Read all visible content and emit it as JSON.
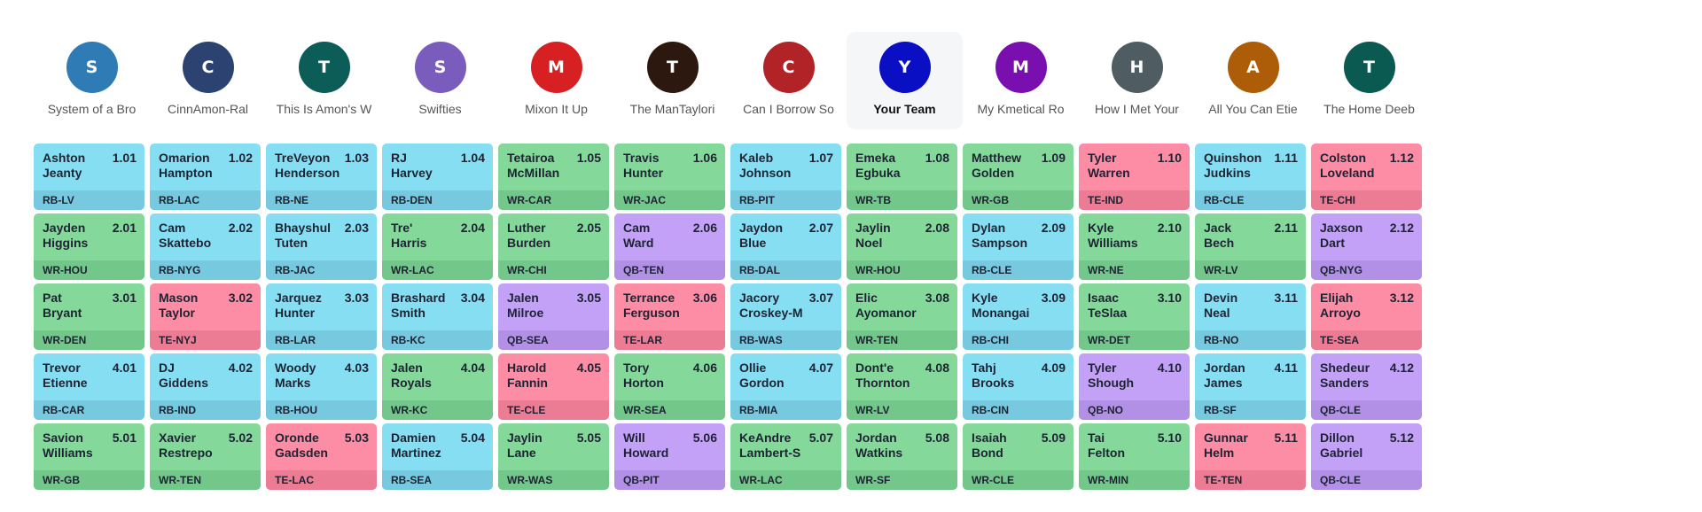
{
  "teams": [
    {
      "initial": "S",
      "name": "System of a Bro",
      "color": "#2f7bb5",
      "mine": false
    },
    {
      "initial": "C",
      "name": "CinnAmon-Ral",
      "color": "#2c4270",
      "mine": false
    },
    {
      "initial": "T",
      "name": "This Is Amon's W",
      "color": "#0c5c58",
      "mine": false
    },
    {
      "initial": "S",
      "name": "Swifties",
      "color": "#7a5cbc",
      "mine": false
    },
    {
      "initial": "M",
      "name": "Mixon It Up",
      "color": "#d62022",
      "mine": false
    },
    {
      "initial": "T",
      "name": "The ManTaylori",
      "color": "#2d1810",
      "mine": false
    },
    {
      "initial": "C",
      "name": "Can I Borrow So",
      "color": "#b22328",
      "mine": false
    },
    {
      "initial": "Y",
      "name": "Your Team",
      "color": "#0a0fc4",
      "mine": true
    },
    {
      "initial": "M",
      "name": "My Kmetical Ro",
      "color": "#7a0fb0",
      "mine": false
    },
    {
      "initial": "H",
      "name": "How I Met Your",
      "color": "#4f5d63",
      "mine": false
    },
    {
      "initial": "A",
      "name": "All You Can Etie",
      "color": "#ad5c07",
      "mine": false
    },
    {
      "initial": "T",
      "name": "The Home Deeb",
      "color": "#0b5a52",
      "mine": false
    }
  ],
  "rounds": [
    [
      {
        "name": "Ashton\nJeanty",
        "num": "1.01",
        "pos": "RB",
        "team": "LV"
      },
      {
        "name": "Omarion\nHampton",
        "num": "1.02",
        "pos": "RB",
        "team": "LAC"
      },
      {
        "name": "TreVeyon\nHenderson",
        "num": "1.03",
        "pos": "RB",
        "team": "NE"
      },
      {
        "name": "RJ\nHarvey",
        "num": "1.04",
        "pos": "RB",
        "team": "DEN"
      },
      {
        "name": "Tetairoa\nMcMillan",
        "num": "1.05",
        "pos": "WR",
        "team": "CAR"
      },
      {
        "name": "Travis\nHunter",
        "num": "1.06",
        "pos": "WR",
        "team": "JAC"
      },
      {
        "name": "Kaleb\nJohnson",
        "num": "1.07",
        "pos": "RB",
        "team": "PIT"
      },
      {
        "name": "Emeka\nEgbuka",
        "num": "1.08",
        "pos": "WR",
        "team": "TB"
      },
      {
        "name": "Matthew\nGolden",
        "num": "1.09",
        "pos": "WR",
        "team": "GB"
      },
      {
        "name": "Tyler\nWarren",
        "num": "1.10",
        "pos": "TE",
        "team": "IND"
      },
      {
        "name": "Quinshon\nJudkins",
        "num": "1.11",
        "pos": "RB",
        "team": "CLE"
      },
      {
        "name": "Colston\nLoveland",
        "num": "1.12",
        "pos": "TE",
        "team": "CHI"
      }
    ],
    [
      {
        "name": "Jayden\nHiggins",
        "num": "2.01",
        "pos": "WR",
        "team": "HOU"
      },
      {
        "name": "Cam\nSkattebo",
        "num": "2.02",
        "pos": "RB",
        "team": "NYG"
      },
      {
        "name": "Bhayshul\nTuten",
        "num": "2.03",
        "pos": "RB",
        "team": "JAC"
      },
      {
        "name": "Tre'\nHarris",
        "num": "2.04",
        "pos": "WR",
        "team": "LAC"
      },
      {
        "name": "Luther\nBurden",
        "num": "2.05",
        "pos": "WR",
        "team": "CHI"
      },
      {
        "name": "Cam\nWard",
        "num": "2.06",
        "pos": "QB",
        "team": "TEN"
      },
      {
        "name": "Jaydon\nBlue",
        "num": "2.07",
        "pos": "RB",
        "team": "DAL"
      },
      {
        "name": "Jaylin\nNoel",
        "num": "2.08",
        "pos": "WR",
        "team": "HOU"
      },
      {
        "name": "Dylan\nSampson",
        "num": "2.09",
        "pos": "RB",
        "team": "CLE"
      },
      {
        "name": "Kyle\nWilliams",
        "num": "2.10",
        "pos": "WR",
        "team": "NE"
      },
      {
        "name": "Jack\nBech",
        "num": "2.11",
        "pos": "WR",
        "team": "LV"
      },
      {
        "name": "Jaxson\nDart",
        "num": "2.12",
        "pos": "QB",
        "team": "NYG"
      }
    ],
    [
      {
        "name": "Pat\nBryant",
        "num": "3.01",
        "pos": "WR",
        "team": "DEN"
      },
      {
        "name": "Mason\nTaylor",
        "num": "3.02",
        "pos": "TE",
        "team": "NYJ"
      },
      {
        "name": "Jarquez\nHunter",
        "num": "3.03",
        "pos": "RB",
        "team": "LAR"
      },
      {
        "name": "Brashard\nSmith",
        "num": "3.04",
        "pos": "RB",
        "team": "KC"
      },
      {
        "name": "Jalen\nMilroe",
        "num": "3.05",
        "pos": "QB",
        "team": "SEA"
      },
      {
        "name": "Terrance\nFerguson",
        "num": "3.06",
        "pos": "TE",
        "team": "LAR"
      },
      {
        "name": "Jacory\nCroskey-M",
        "num": "3.07",
        "pos": "RB",
        "team": "WAS"
      },
      {
        "name": "Elic\nAyomanor",
        "num": "3.08",
        "pos": "WR",
        "team": "TEN"
      },
      {
        "name": "Kyle\nMonangai",
        "num": "3.09",
        "pos": "RB",
        "team": "CHI"
      },
      {
        "name": "Isaac\nTeSlaa",
        "num": "3.10",
        "pos": "WR",
        "team": "DET"
      },
      {
        "name": "Devin\nNeal",
        "num": "3.11",
        "pos": "RB",
        "team": "NO"
      },
      {
        "name": "Elijah\nArroyo",
        "num": "3.12",
        "pos": "TE",
        "team": "SEA"
      }
    ],
    [
      {
        "name": "Trevor\nEtienne",
        "num": "4.01",
        "pos": "RB",
        "team": "CAR"
      },
      {
        "name": "DJ\nGiddens",
        "num": "4.02",
        "pos": "RB",
        "team": "IND"
      },
      {
        "name": "Woody\nMarks",
        "num": "4.03",
        "pos": "RB",
        "team": "HOU"
      },
      {
        "name": "Jalen\nRoyals",
        "num": "4.04",
        "pos": "WR",
        "team": "KC"
      },
      {
        "name": "Harold\nFannin",
        "num": "4.05",
        "pos": "TE",
        "team": "CLE"
      },
      {
        "name": "Tory\nHorton",
        "num": "4.06",
        "pos": "WR",
        "team": "SEA"
      },
      {
        "name": "Ollie\nGordon",
        "num": "4.07",
        "pos": "RB",
        "team": "MIA"
      },
      {
        "name": "Dont'e\nThornton",
        "num": "4.08",
        "pos": "WR",
        "team": "LV"
      },
      {
        "name": "Tahj\nBrooks",
        "num": "4.09",
        "pos": "RB",
        "team": "CIN"
      },
      {
        "name": "Tyler\nShough",
        "num": "4.10",
        "pos": "QB",
        "team": "NO"
      },
      {
        "name": "Jordan\nJames",
        "num": "4.11",
        "pos": "RB",
        "team": "SF"
      },
      {
        "name": "Shedeur\nSanders",
        "num": "4.12",
        "pos": "QB",
        "team": "CLE"
      }
    ],
    [
      {
        "name": "Savion\nWilliams",
        "num": "5.01",
        "pos": "WR",
        "team": "GB"
      },
      {
        "name": "Xavier\nRestrepo",
        "num": "5.02",
        "pos": "WR",
        "team": "TEN"
      },
      {
        "name": "Oronde\nGadsden",
        "num": "5.03",
        "pos": "TE",
        "team": "LAC"
      },
      {
        "name": "Damien\nMartinez",
        "num": "5.04",
        "pos": "RB",
        "team": "SEA"
      },
      {
        "name": "Jaylin\nLane",
        "num": "5.05",
        "pos": "WR",
        "team": "WAS"
      },
      {
        "name": "Will\nHoward",
        "num": "5.06",
        "pos": "QB",
        "team": "PIT"
      },
      {
        "name": "KeAndre\nLambert-S",
        "num": "5.07",
        "pos": "WR",
        "team": "LAC"
      },
      {
        "name": "Jordan\nWatkins",
        "num": "5.08",
        "pos": "WR",
        "team": "SF"
      },
      {
        "name": "Isaiah\nBond",
        "num": "5.09",
        "pos": "WR",
        "team": "CLE"
      },
      {
        "name": "Tai\nFelton",
        "num": "5.10",
        "pos": "WR",
        "team": "MIN"
      },
      {
        "name": "Gunnar\nHelm",
        "num": "5.11",
        "pos": "TE",
        "team": "TEN"
      },
      {
        "name": "Dillon\nGabriel",
        "num": "5.12",
        "pos": "QB",
        "team": "CLE"
      }
    ]
  ]
}
